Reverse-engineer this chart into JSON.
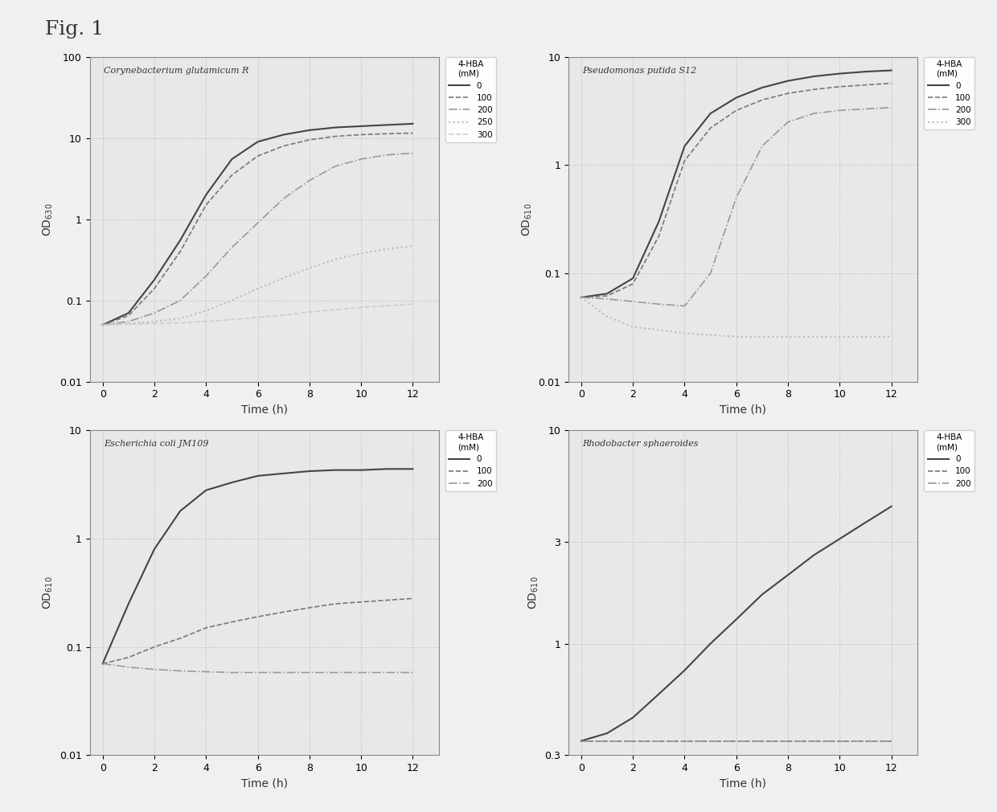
{
  "fig_label": "Fig. 1",
  "subplots": [
    {
      "title": "Corynebacterium glutamicum R",
      "ylabel": "OD$_{630}$",
      "xlabel": "Time (h)",
      "ylim": [
        0.01,
        100
      ],
      "yticks": [
        0.01,
        0.1,
        1,
        10,
        100
      ],
      "ytick_labels": [
        "0.01",
        "0.1",
        "1",
        "10",
        "100"
      ],
      "series": [
        {
          "label": "0",
          "x": [
            0,
            1,
            2,
            3,
            4,
            5,
            6,
            7,
            8,
            9,
            10,
            11,
            12
          ],
          "y": [
            0.05,
            0.07,
            0.18,
            0.55,
            2.0,
            5.5,
            9.0,
            11.0,
            12.5,
            13.5,
            14.0,
            14.5,
            15.0
          ]
        },
        {
          "label": "100",
          "x": [
            0,
            1,
            2,
            3,
            4,
            5,
            6,
            7,
            8,
            9,
            10,
            11,
            12
          ],
          "y": [
            0.05,
            0.065,
            0.14,
            0.4,
            1.5,
            3.5,
            6.0,
            8.0,
            9.5,
            10.5,
            11.0,
            11.3,
            11.5
          ]
        },
        {
          "label": "200",
          "x": [
            0,
            1,
            2,
            3,
            4,
            5,
            6,
            7,
            8,
            9,
            10,
            11,
            12
          ],
          "y": [
            0.05,
            0.055,
            0.07,
            0.1,
            0.2,
            0.45,
            0.9,
            1.8,
            3.0,
            4.5,
            5.5,
            6.2,
            6.5
          ]
        },
        {
          "label": "250",
          "x": [
            0,
            1,
            2,
            3,
            4,
            5,
            6,
            7,
            8,
            9,
            10,
            11,
            12
          ],
          "y": [
            0.05,
            0.052,
            0.055,
            0.06,
            0.075,
            0.1,
            0.14,
            0.19,
            0.25,
            0.32,
            0.38,
            0.43,
            0.47
          ]
        },
        {
          "label": "300",
          "x": [
            0,
            1,
            2,
            3,
            4,
            5,
            6,
            7,
            8,
            9,
            10,
            11,
            12
          ],
          "y": [
            0.05,
            0.051,
            0.052,
            0.053,
            0.055,
            0.058,
            0.062,
            0.066,
            0.072,
            0.077,
            0.082,
            0.086,
            0.09
          ]
        }
      ],
      "legend_title": "4-HBA\n(mM)",
      "legend_labels": [
        "~~0",
        "~~100",
        "~~200",
        "~~250",
        "~~300"
      ]
    },
    {
      "title": "Pseudomonas putida S12",
      "ylabel": "OD$_{610}$",
      "xlabel": "Time (h)",
      "ylim": [
        0.01,
        10
      ],
      "yticks": [
        0.01,
        0.1,
        1,
        10
      ],
      "ytick_labels": [
        "0.01",
        "0.1",
        "1",
        "10"
      ],
      "series": [
        {
          "label": "0",
          "x": [
            0,
            1,
            2,
            3,
            4,
            5,
            6,
            7,
            8,
            9,
            10,
            11,
            12
          ],
          "y": [
            0.06,
            0.065,
            0.09,
            0.3,
            1.5,
            3.0,
            4.2,
            5.2,
            6.0,
            6.6,
            7.0,
            7.3,
            7.5
          ]
        },
        {
          "label": "100",
          "x": [
            0,
            1,
            2,
            3,
            4,
            5,
            6,
            7,
            8,
            9,
            10,
            11,
            12
          ],
          "y": [
            0.06,
            0.062,
            0.08,
            0.22,
            1.1,
            2.2,
            3.2,
            4.0,
            4.6,
            5.0,
            5.3,
            5.5,
            5.7
          ]
        },
        {
          "label": "200",
          "x": [
            0,
            1,
            2,
            3,
            4,
            5,
            6,
            7,
            8,
            9,
            10,
            11,
            12
          ],
          "y": [
            0.06,
            0.058,
            0.055,
            0.052,
            0.05,
            0.1,
            0.5,
            1.5,
            2.5,
            3.0,
            3.2,
            3.3,
            3.4
          ]
        },
        {
          "label": "300",
          "x": [
            0,
            1,
            2,
            3,
            4,
            5,
            6,
            7,
            8,
            9,
            10,
            11,
            12
          ],
          "y": [
            0.06,
            0.04,
            0.032,
            0.03,
            0.028,
            0.027,
            0.026,
            0.026,
            0.026,
            0.026,
            0.026,
            0.026,
            0.026
          ]
        }
      ],
      "legend_title": "4-HBA\n(mM)",
      "legend_labels": [
        "~~0",
        "~~100",
        "~~200",
        "~~300"
      ]
    },
    {
      "title": "Escherichia coli JM109",
      "ylabel": "OD$_{610}$",
      "xlabel": "Time (h)",
      "ylim": [
        0.01,
        10
      ],
      "yticks": [
        0.01,
        0.1,
        1,
        10
      ],
      "ytick_labels": [
        "0.01",
        "0.1",
        "1",
        "10"
      ],
      "series": [
        {
          "label": "0",
          "x": [
            0,
            1,
            2,
            3,
            4,
            5,
            6,
            7,
            8,
            9,
            10,
            11,
            12
          ],
          "y": [
            0.07,
            0.25,
            0.8,
            1.8,
            2.8,
            3.3,
            3.8,
            4.0,
            4.2,
            4.3,
            4.3,
            4.4,
            4.4
          ]
        },
        {
          "label": "100",
          "x": [
            0,
            1,
            2,
            3,
            4,
            5,
            6,
            7,
            8,
            9,
            10,
            11,
            12
          ],
          "y": [
            0.07,
            0.08,
            0.1,
            0.12,
            0.15,
            0.17,
            0.19,
            0.21,
            0.23,
            0.25,
            0.26,
            0.27,
            0.28
          ]
        },
        {
          "label": "200",
          "x": [
            0,
            1,
            2,
            3,
            4,
            5,
            6,
            7,
            8,
            9,
            10,
            11,
            12
          ],
          "y": [
            0.07,
            0.065,
            0.062,
            0.06,
            0.059,
            0.058,
            0.058,
            0.058,
            0.058,
            0.058,
            0.058,
            0.058,
            0.058
          ]
        }
      ],
      "legend_title": "4-HBA\n(mM)",
      "legend_labels": [
        "~~0",
        "~~100",
        "~~200"
      ]
    },
    {
      "title": "Rhodobacter sphaeroides",
      "ylabel": "OD$_{610}$",
      "xlabel": "Time (h)",
      "ylim": [
        0.3,
        10
      ],
      "yticks": [
        0.3,
        1,
        3,
        10
      ],
      "ytick_labels": [
        "0.3",
        "1",
        "3",
        "10"
      ],
      "series": [
        {
          "label": "0",
          "x": [
            0,
            1,
            2,
            3,
            4,
            5,
            6,
            7,
            8,
            9,
            10,
            11,
            12
          ],
          "y": [
            0.35,
            0.38,
            0.45,
            0.58,
            0.75,
            1.0,
            1.3,
            1.7,
            2.1,
            2.6,
            3.1,
            3.7,
            4.4
          ]
        },
        {
          "label": "100",
          "x": [
            0,
            1,
            2,
            3,
            4,
            5,
            6,
            7,
            8,
            9,
            10,
            11,
            12
          ],
          "y": [
            0.35,
            0.35,
            0.35,
            0.35,
            0.35,
            0.35,
            0.35,
            0.35,
            0.35,
            0.35,
            0.35,
            0.35,
            0.35
          ]
        },
        {
          "label": "200",
          "x": [
            0,
            1,
            2,
            3,
            4,
            5,
            6,
            7,
            8,
            9,
            10,
            11,
            12
          ],
          "y": [
            0.35,
            0.35,
            0.35,
            0.35,
            0.35,
            0.35,
            0.35,
            0.35,
            0.35,
            0.35,
            0.35,
            0.35,
            0.35
          ]
        }
      ],
      "legend_title": "4-HBA\n(mM)",
      "legend_labels": [
        "~~0",
        "~~100",
        "~~200"
      ]
    }
  ],
  "line_styles": [
    {
      "color": "#444444",
      "linestyle": "-",
      "marker": "None",
      "markersize": 0,
      "linewidth": 1.5,
      "dashes": []
    },
    {
      "color": "#777777",
      "linestyle": "--",
      "marker": "None",
      "markersize": 0,
      "linewidth": 1.2,
      "dashes": [
        4,
        2
      ]
    },
    {
      "color": "#999999",
      "linestyle": "-.",
      "marker": "None",
      "markersize": 0,
      "linewidth": 1.2,
      "dashes": []
    },
    {
      "color": "#bbbbbb",
      "linestyle": ":",
      "marker": "None",
      "markersize": 0,
      "linewidth": 1.5,
      "dashes": [
        1,
        2
      ]
    },
    {
      "color": "#cccccc",
      "linestyle": "--",
      "marker": "None",
      "markersize": 0,
      "linewidth": 1.2,
      "dashes": [
        6,
        2
      ]
    }
  ],
  "background_color": "#f0f0f0",
  "plot_bg_color": "#e8e8e8",
  "grid_color": "#aaaaaa",
  "fig_label_fontsize": 18
}
